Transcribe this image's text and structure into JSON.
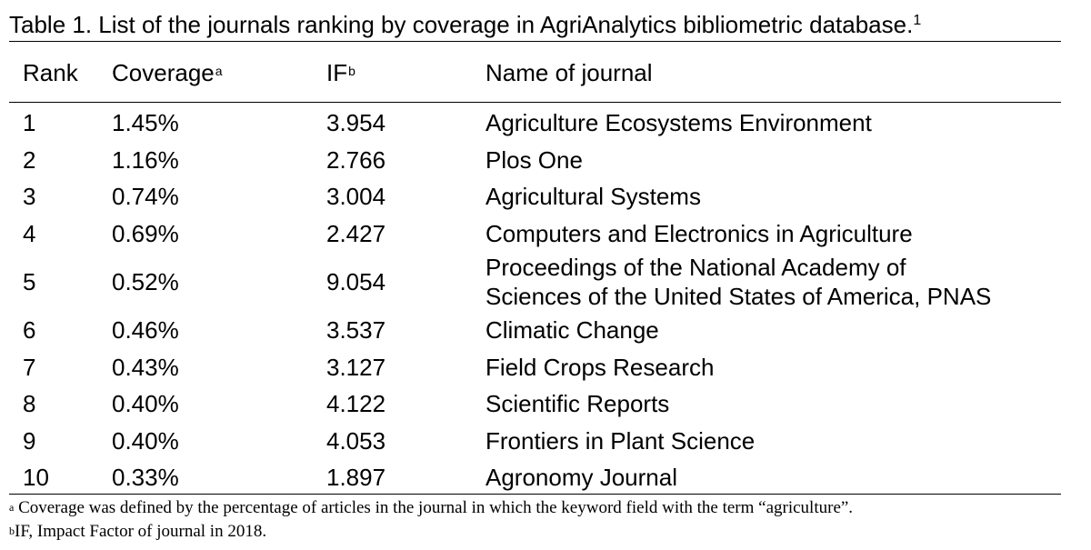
{
  "caption": {
    "text": "Table 1. List of the journals ranking by coverage in AgriAnalytics bibliometric database.",
    "superscript": "1"
  },
  "headers": {
    "rank": "Rank",
    "coverage": "Coverage",
    "coverage_sup": "a",
    "if": "IF",
    "if_sup": "b",
    "name": "Name of journal"
  },
  "rows": [
    {
      "rank": "1",
      "coverage": "1.45%",
      "if": "3.954",
      "name_lines": [
        "Agriculture Ecosystems Environment"
      ]
    },
    {
      "rank": "2",
      "coverage": "1.16%",
      "if": "2.766",
      "name_lines": [
        "Plos One"
      ]
    },
    {
      "rank": "3",
      "coverage": "0.74%",
      "if": "3.004",
      "name_lines": [
        "Agricultural Systems"
      ]
    },
    {
      "rank": "4",
      "coverage": "0.69%",
      "if": "2.427",
      "name_lines": [
        "Computers and Electronics in Agriculture"
      ]
    },
    {
      "rank": "5",
      "coverage": "0.52%",
      "if": "9.054",
      "name_lines": [
        "Proceedings of the National Academy of",
        "Sciences of the United States of America, PNAS"
      ]
    },
    {
      "rank": "6",
      "coverage": "0.46%",
      "if": "3.537",
      "name_lines": [
        "Climatic Change"
      ]
    },
    {
      "rank": "7",
      "coverage": "0.43%",
      "if": "3.127",
      "name_lines": [
        "Field Crops Research"
      ]
    },
    {
      "rank": "8",
      "coverage": "0.40%",
      "if": "4.122",
      "name_lines": [
        "Scientific Reports"
      ]
    },
    {
      "rank": "9",
      "coverage": "0.40%",
      "if": "4.053",
      "name_lines": [
        "Frontiers in Plant Science"
      ]
    },
    {
      "rank": "10",
      "coverage": "0.33%",
      "if": "1.897",
      "name_lines": [
        "Agronomy Journal"
      ]
    }
  ],
  "footnotes": [
    {
      "marker": "a",
      "text": " Coverage was defined by the percentage of articles in the journal in which the keyword field with the term “agriculture”."
    },
    {
      "marker": "b",
      "text": "IF, Impact Factor of journal in 2018."
    }
  ]
}
